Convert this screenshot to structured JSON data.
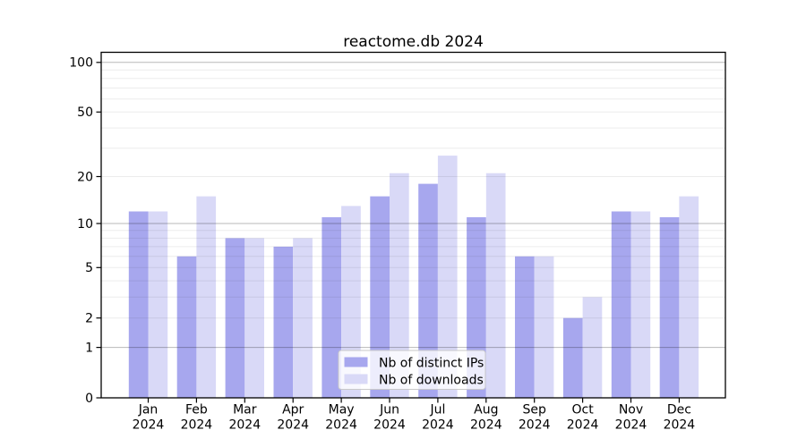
{
  "figure": {
    "title": "reactome.db 2024"
  },
  "legend": {
    "items": [
      {
        "label": "Nb of distinct IPs"
      },
      {
        "label": "Nb of downloads"
      }
    ],
    "position": "lower center"
  },
  "axes": {
    "y_tick_labels": [
      "0",
      "1",
      "2",
      "5",
      "10",
      "20",
      "50",
      "100"
    ],
    "x_tick_year_line": "2024"
  },
  "colors": {
    "distinct_ips": "#a7a7ee",
    "downloads": "#d9d9f7",
    "grid_minor": "rgba(0,0,0,0.075)",
    "grid_major": "rgba(0,0,0,0.28)",
    "spine": "#000000",
    "legend_border": "#c9c9c9",
    "legend_background": "rgba(255,255,255,0.8)",
    "background": "#ffffff"
  },
  "chart_data": {
    "type": "bar",
    "title": "reactome.db 2024",
    "categories": [
      "Jan 2024",
      "Feb 2024",
      "Mar 2024",
      "Apr 2024",
      "May 2024",
      "Jun 2024",
      "Jul 2024",
      "Aug 2024",
      "Sep 2024",
      "Oct 2024",
      "Nov 2024",
      "Dec 2024"
    ],
    "series": [
      {
        "name": "Nb of distinct IPs",
        "color": "#a7a7ee",
        "values": [
          12,
          6,
          8,
          7,
          11,
          15,
          18,
          11,
          6,
          2,
          12,
          11
        ]
      },
      {
        "name": "Nb of downloads",
        "color": "#d9d9f7",
        "values": [
          12,
          15,
          8,
          8,
          13,
          21,
          27,
          21,
          6,
          3,
          12,
          15
        ]
      }
    ],
    "xlabel": "",
    "ylabel": "",
    "yscale": "log1p",
    "yticks": [
      0,
      1,
      2,
      5,
      10,
      20,
      50,
      100
    ],
    "ylim": [
      0,
      115
    ],
    "grid": {
      "orientation": "horizontal",
      "minor": [
        2,
        3,
        4,
        5,
        6,
        7,
        8,
        9,
        20,
        30,
        40,
        50,
        60,
        70,
        80,
        90
      ],
      "major": [
        1,
        10,
        100
      ],
      "drawn_over_bars": true
    },
    "legend_position": "lower center"
  }
}
